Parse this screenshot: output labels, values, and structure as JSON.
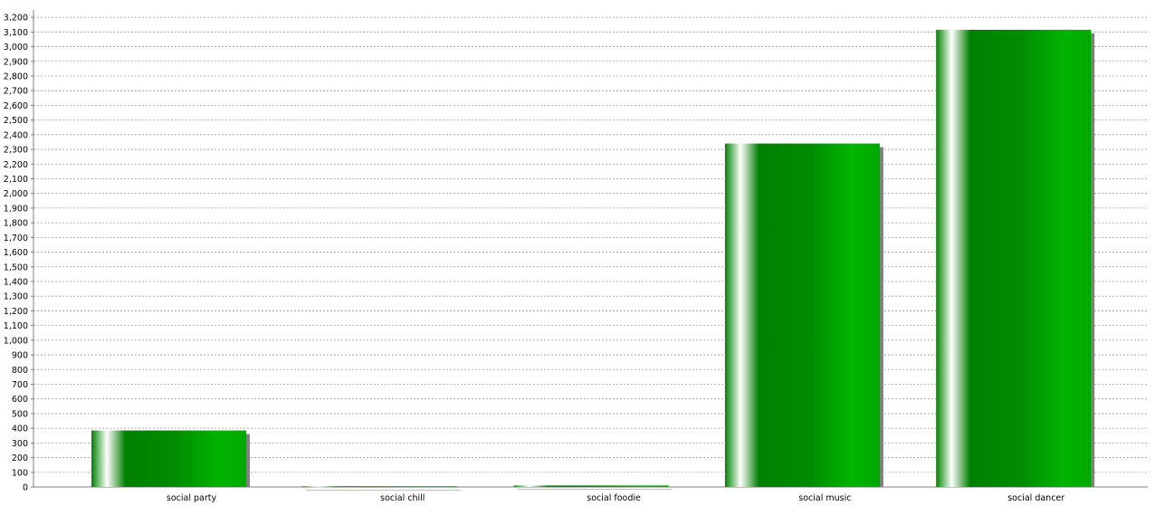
{
  "chart_data": {
    "type": "bar",
    "title": "",
    "xlabel": "",
    "ylabel": "",
    "categories": [
      "social party",
      "social chill",
      "social foodie",
      "social music",
      "social dancer"
    ],
    "values": [
      385,
      5,
      10,
      2340,
      3115
    ],
    "ylim": [
      0,
      3250
    ],
    "ytick_step": 100,
    "grid": "horizontal-dashed",
    "legend": "none",
    "colors": {
      "bar_dark": "#008000",
      "bar_mid": "#00b000",
      "bar_highlight": "#ffffff",
      "shadow": "#808080",
      "grid": "#9a9a9a",
      "axis": "#808080",
      "tick_text": "#000000"
    }
  }
}
